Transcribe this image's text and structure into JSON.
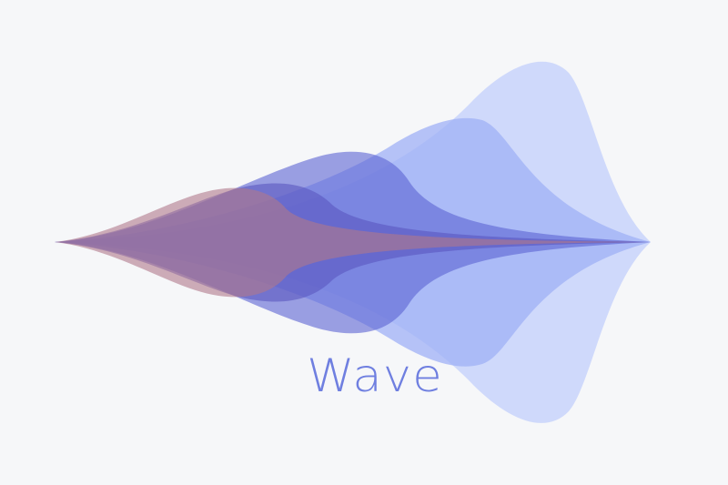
{
  "logo": {
    "wordmark": "Wave",
    "wordmark_color": "#6f7fe0",
    "background_color": "#f6f7f9"
  },
  "layers": [
    {
      "name": "pale-blue-layer",
      "color": "#c8d4fb",
      "opacity": 0.85
    },
    {
      "name": "periwinkle-layer",
      "color": "#9fb0f5",
      "opacity": 0.75
    },
    {
      "name": "indigo-layer",
      "color": "#5c63d2",
      "opacity": 0.6
    },
    {
      "name": "violet-layer",
      "color": "#5a56c0",
      "opacity": 0.6
    },
    {
      "name": "mauve-layer",
      "color": "#b0788a",
      "opacity": 0.6
    }
  ]
}
